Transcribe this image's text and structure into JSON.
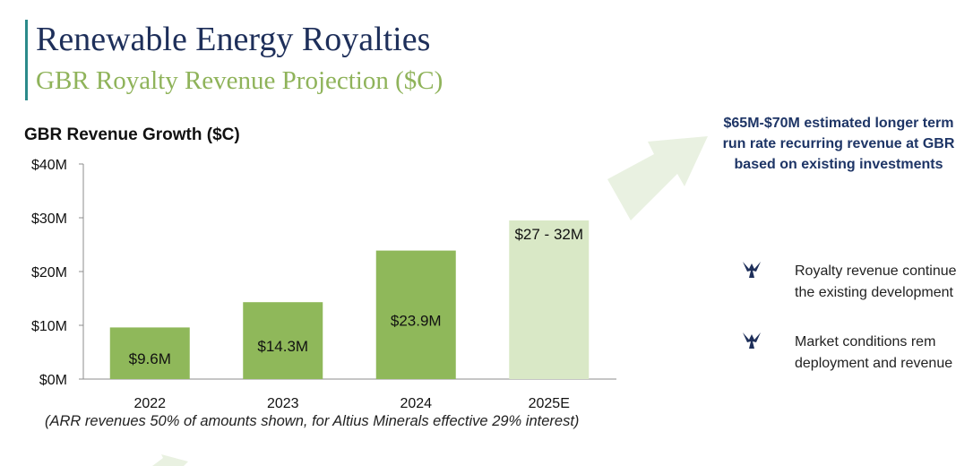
{
  "header": {
    "title": "Renewable Energy Royalties",
    "subtitle": "GBR Royalty Revenue Projection ($C)"
  },
  "colors": {
    "title": "#1e2f5a",
    "subtitle": "#8fb35a",
    "accent_bar": "#2b8a8a",
    "bar_actual": "#8fb85a",
    "bar_estimate": "#d9e8c6",
    "arrow": "#e9f1e1",
    "callout_text": "#1e3566"
  },
  "chart_heading": "GBR Revenue Growth ($C)",
  "chart_data": {
    "type": "bar",
    "title": "GBR Revenue Growth ($C)",
    "categories": [
      "2022",
      "2023",
      "2024",
      "2025E"
    ],
    "values": [
      9.6,
      14.3,
      23.9,
      29.5
    ],
    "bar_labels": [
      "$9.6M",
      "$14.3M",
      "$23.9M",
      "$27 - 32M"
    ],
    "estimate_flags": [
      false,
      false,
      false,
      true
    ],
    "estimate_range": [
      27,
      32
    ],
    "units": "$M",
    "ylim": [
      0,
      40
    ],
    "yticks": [
      {
        "value": 0,
        "label": "$0M"
      },
      {
        "value": 10,
        "label": "$10M"
      },
      {
        "value": 20,
        "label": "$20M"
      },
      {
        "value": 30,
        "label": "$30M"
      },
      {
        "value": 40,
        "label": "$40M"
      }
    ],
    "grid": false,
    "legend": "none"
  },
  "footnote": "(ARR revenues 50% of amounts shown, for Altius Minerals effective 29% interest)",
  "callout": {
    "lines": [
      "$65M-$70M estimated longer term",
      "run rate recurring revenue at GBR",
      "based on existing investments"
    ]
  },
  "bullets": [
    {
      "icon": "bird-bullet-icon",
      "lines": [
        "Royalty revenue continue",
        "the existing development"
      ]
    },
    {
      "icon": "bird-bullet-icon",
      "lines": [
        "Market   conditions   rem",
        "deployment and revenue"
      ]
    }
  ]
}
